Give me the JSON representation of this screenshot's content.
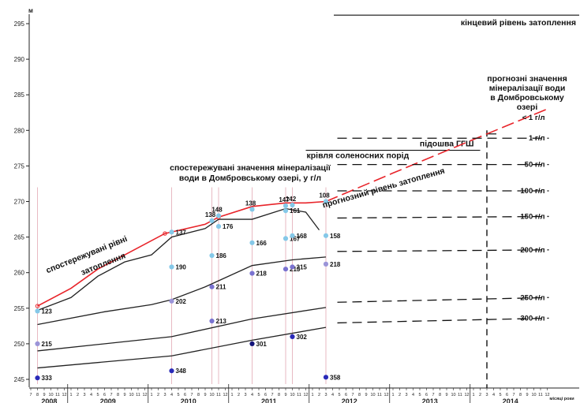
{
  "chart_data": {
    "type": "line",
    "ylabel": "м",
    "ylim": [
      245,
      295
    ],
    "y_ticks": [
      "245",
      "250",
      "255",
      "260",
      "265",
      "270",
      "275",
      "280",
      "285",
      "290",
      "295"
    ],
    "xlabel": "місяці роки",
    "x_start": "2008-07",
    "x_end": "2014-12",
    "years": [
      "2008",
      "2009",
      "2010",
      "2011",
      "2012",
      "2013",
      "2014"
    ],
    "month_ticks_2008": [
      "7",
      "8",
      "9",
      "10",
      "11",
      "12"
    ],
    "month_ticks": [
      "1",
      "2",
      "3",
      "4",
      "5",
      "6",
      "7",
      "8",
      "9",
      "10",
      "11",
      "12"
    ],
    "month_ticks_2014": [
      "1",
      "2",
      "3",
      "4",
      "5",
      "6",
      "7",
      "8",
      "9",
      "10",
      "11",
      "12"
    ],
    "series": [
      {
        "name": "спостережувані рівні затоплення",
        "color": "#e8242a",
        "x": [
          "2008-08",
          "2009-01",
          "2009-05",
          "2009-09",
          "2010-03",
          "2010-09",
          "2010-11",
          "2011-04",
          "2011-09",
          "2011-12",
          "2012-03"
        ],
        "y": [
          255.3,
          257.8,
          260.5,
          262.5,
          265.5,
          266.8,
          267.8,
          269.3,
          269.8,
          269.8,
          270.0
        ]
      },
      {
        "name": "прогнозний рівень затоплення",
        "color": "#e8242a",
        "dashed": true,
        "x": [
          "2012-03",
          "2013-01",
          "2014-03",
          "2014-12"
        ],
        "y": [
          270.0,
          274.0,
          279.5,
          283.0
        ]
      },
      {
        "name": "",
        "color": "#222222",
        "x": [
          "2008-08",
          "2009-01",
          "2009-05",
          "2009-09",
          "2010-01",
          "2010-04",
          "2010-09",
          "2010-11",
          "2011-01",
          "2011-04",
          "2011-09",
          "2011-12",
          "2012-02"
        ],
        "y": [
          254.7,
          256.5,
          259.5,
          261.5,
          262.5,
          265.0,
          266.2,
          267.5,
          267.5,
          267.5,
          269.0,
          268.5,
          266.0
        ]
      },
      {
        "name": "",
        "color": "#222222",
        "x": [
          "2008-08",
          "2009-06",
          "2010-01",
          "2010-04",
          "2010-09",
          "2011-04",
          "2011-10",
          "2012-03"
        ],
        "y": [
          252.7,
          254.5,
          255.5,
          256.2,
          258.0,
          261.0,
          261.8,
          262.2
        ]
      },
      {
        "name": "",
        "color": "#222222",
        "x": [
          "2008-08",
          "2010-04",
          "2011-04",
          "2012-03"
        ],
        "y": [
          249.0,
          251.0,
          253.5,
          255.1
        ]
      },
      {
        "name": "",
        "color": "#222222",
        "x": [
          "2008-08",
          "2010-04",
          "2011-04",
          "2012-03"
        ],
        "y": [
          246.6,
          248.3,
          250.5,
          252.3
        ]
      }
    ],
    "mineralization_points": [
      {
        "label": "123",
        "x": "2008-08",
        "y": 254.6,
        "color": "#85c8e8"
      },
      {
        "label": "215",
        "x": "2008-08",
        "y": 250.0,
        "color": "#9b94d8"
      },
      {
        "label": "333",
        "x": "2008-08",
        "y": 245.2,
        "color": "#2a2ab8"
      },
      {
        "label": "137",
        "x": "2010-04",
        "y": 265.7,
        "color": "#85c8e8"
      },
      {
        "label": "190",
        "x": "2010-04",
        "y": 260.8,
        "color": "#85c8e8"
      },
      {
        "label": "202",
        "x": "2010-04",
        "y": 256.0,
        "color": "#9b94d8"
      },
      {
        "label": "348",
        "x": "2010-04",
        "y": 246.2,
        "color": "#2a2ab8"
      },
      {
        "label": "138",
        "x": "2010-10",
        "y": 267.3,
        "color": "#85c8e8"
      },
      {
        "label": "186",
        "x": "2010-10",
        "y": 262.4,
        "color": "#85c8e8"
      },
      {
        "label": "211",
        "x": "2010-10",
        "y": 258.0,
        "color": "#7a72d0"
      },
      {
        "label": "213",
        "x": "2010-10",
        "y": 253.2,
        "color": "#7a72d0"
      },
      {
        "label": "148",
        "x": "2010-11",
        "y": 268.0,
        "color": "#85c8e8"
      },
      {
        "label": "176",
        "x": "2010-11",
        "y": 266.5,
        "color": "#85c8e8"
      },
      {
        "label": "138",
        "x": "2011-04",
        "y": 268.9,
        "color": "#85c8e8"
      },
      {
        "label": "166",
        "x": "2011-04",
        "y": 264.2,
        "color": "#85c8e8"
      },
      {
        "label": "218",
        "x": "2011-04",
        "y": 259.9,
        "color": "#7a72d0"
      },
      {
        "label": "301",
        "x": "2011-04",
        "y": 250.0,
        "color": "#14147a"
      },
      {
        "label": "147",
        "x": "2011-09",
        "y": 269.4,
        "color": "#85c8e8"
      },
      {
        "label": "161",
        "x": "2011-09",
        "y": 268.7,
        "color": "#85c8e8"
      },
      {
        "label": "167",
        "x": "2011-09",
        "y": 264.8,
        "color": "#85c8e8"
      },
      {
        "label": "213",
        "x": "2011-09",
        "y": 260.5,
        "color": "#7a72d0"
      },
      {
        "label": "142",
        "x": "2011-10",
        "y": 269.5,
        "color": "#85c8e8"
      },
      {
        "label": "168",
        "x": "2011-10",
        "y": 265.2,
        "color": "#85c8e8"
      },
      {
        "label": "215",
        "x": "2011-10",
        "y": 260.8,
        "color": "#7a72d0"
      },
      {
        "label": "302",
        "x": "2011-10",
        "y": 251.0,
        "color": "#2a2ab8"
      },
      {
        "label": "108",
        "x": "2012-03",
        "y": 270.0,
        "color": "#85c8e8"
      },
      {
        "label": "158",
        "x": "2012-03",
        "y": 265.2,
        "color": "#85c8e8"
      },
      {
        "label": "218",
        "x": "2012-03",
        "y": 261.2,
        "color": "#9b94d8"
      },
      {
        "label": "358",
        "x": "2012-03",
        "y": 245.3,
        "color": "#2a2ab8"
      }
    ],
    "mineralization_levels": [
      {
        "label": "< 1 г/л",
        "x_end": "2014-12",
        "y": 281.8
      },
      {
        "label": "1 г/л",
        "x_end": "2014-12",
        "y": 278.9
      },
      {
        "label": "50 г/л",
        "x_end": "2014-12",
        "y": 275.2
      },
      {
        "label": "100 г/л",
        "x_end": "2014-12",
        "y": 271.5
      },
      {
        "label": "150 г/л",
        "x_end": "2014-12",
        "y": 267.9
      },
      {
        "label": "200 г/л",
        "x_end": "2014-12",
        "y": 263.2
      },
      {
        "label": "250 г/л",
        "x_end": "2014-12",
        "y": 256.5
      },
      {
        "label": "300 г/л",
        "x_end": "2014-12",
        "y": 253.6
      }
    ],
    "reference_lines": [
      {
        "label": "кінцевий рівень затоплення",
        "y": 296.2,
        "x_start": "2012-03",
        "x_end": "2014-12"
      },
      {
        "label": "підошва ГГШ",
        "y": 277.2,
        "x_start": "2012-11",
        "x_end": "2014-02"
      },
      {
        "label": "крівля соленосних порід",
        "y": 277.2,
        "x_start": "2011-12",
        "x_end": "2012-11"
      }
    ],
    "forecast_start": "2014-03",
    "annotations": {
      "observed_levels": "спостережувані рівні затоплення",
      "observed_mineralization": [
        "спостережувані значення мінералізації",
        "води в Домбровському озері, у г/л"
      ],
      "forecast_level": "прогнозний рівень затоплення",
      "forecast_mineralization": [
        "прогнозні значення",
        "мінералізації води",
        "в Домбровському",
        "озері"
      ]
    },
    "grid": false
  }
}
